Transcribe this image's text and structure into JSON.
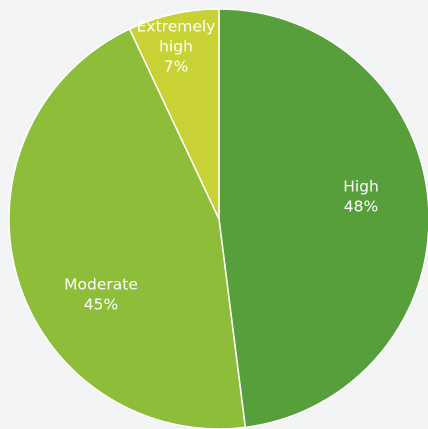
{
  "chart_data": {
    "type": "pie",
    "title": "",
    "start_angle_deg": 0,
    "direction": "clockwise",
    "slices": [
      {
        "label": "High",
        "value": 48,
        "percent_label": "48%",
        "color": "#579f3a"
      },
      {
        "label": "Moderate",
        "value": 45,
        "percent_label": "45%",
        "color": "#8ebd3a"
      },
      {
        "label_lines": [
          "Extremely",
          "high"
        ],
        "value": 7,
        "percent_label": "7%",
        "color": "#c8d234"
      }
    ],
    "legend": "none"
  }
}
